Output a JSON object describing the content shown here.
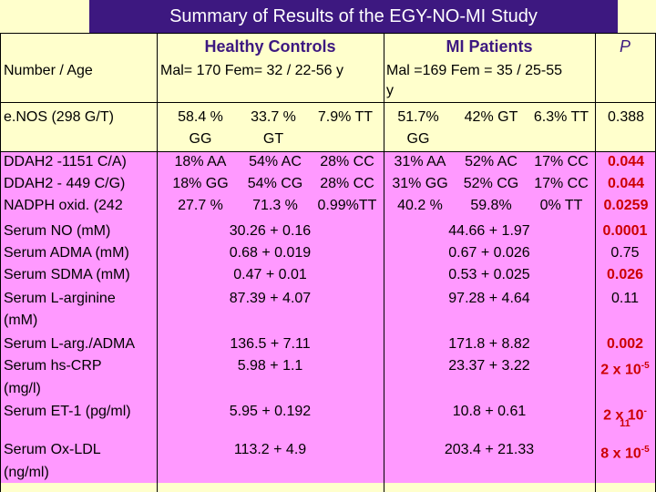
{
  "title": "Summary of Results of the EGY-NO-MI Study",
  "headers": {
    "healthy": "Healthy Controls",
    "mi": "MI Patients",
    "p": "P"
  },
  "number_age": {
    "label": "Number / Age",
    "healthy": "Mal= 170  Fem= 32  / 22-56 y",
    "mi": "Mal =169  Fem = 35  / 25-55",
    "mi_cont": "y"
  },
  "enos": {
    "label": "e.NOS (298 G/T)",
    "h1": "58.4 %",
    "h1b": "GG",
    "h2": "33.7 %",
    "h2b": "GT",
    "h3": "7.9% TT",
    "m1": "51.7%",
    "m1b": "GG",
    "m2": "42% GT",
    "m3": "6.3% TT",
    "p": "0.388"
  },
  "genotype_rows": [
    {
      "label": "DDAH2 -1151 C/A)",
      "h1": "18% AA",
      "h2": "54% AC",
      "h3": "28% CC",
      "m1": "31% AA",
      "m2": "52% AC",
      "m3": "17% CC",
      "p": "0.044"
    },
    {
      "label": "DDAH2 - 449 C/G)",
      "h1": "18% GG",
      "h2": "54% CG",
      "h3": "28% CC",
      "m1": "31% GG",
      "m2": "52% CG",
      "m3": "17% CC",
      "p": "0.044"
    },
    {
      "label": "NADPH oxid. (242",
      "h1": "27.7 %",
      "h2": "71.3 %",
      "h3": "0.99%TT",
      "m1": "40.2 %",
      "m2": "59.8%",
      "m3": "0% TT",
      "p": "0.0259"
    }
  ],
  "serum_rows": [
    {
      "label": "Serum NO (mM)",
      "healthy": "30.26 + 0.16",
      "mi": "44.66 + 1.97",
      "p": "0.0001"
    },
    {
      "label": "Serum ADMA (mM)",
      "healthy": "0.68 + 0.019",
      "mi": "0.67 + 0.026",
      "p": "0.75"
    },
    {
      "label": "Serum SDMA (mM)",
      "healthy": "0.47 + 0.01",
      "mi": "0.53 + 0.025",
      "p": "0.026"
    },
    {
      "label": "Serum L-arginine",
      "label2": "(mM)",
      "healthy": "87.39 + 4.07",
      "mi": "97.28 + 4.64",
      "p": "0.11"
    },
    {
      "label": "Serum L-arg./ADMA",
      "healthy": "136.5 + 7.11",
      "mi": "171.8 + 8.82",
      "p": "0.002"
    },
    {
      "label": "Serum hs-CRP",
      "label2": "(mg/l)",
      "healthy": "5.98 + 1.1",
      "mi": "23.37 + 3.22",
      "p": "2 x 10",
      "p_exp": "-5"
    },
    {
      "label": "Serum ET-1 (pg/ml)",
      "healthy": "5.95 + 0.192",
      "mi": "10.8 + 0.61",
      "p": "2 x 10",
      "p_exp": "-",
      "p_line2": "11"
    },
    {
      "label": "Serum Ox-LDL",
      "label2": "(ng/ml)",
      "healthy": "113.2 + 4.9",
      "mi": "203.4 + 21.33",
      "p": "8 x 10",
      "p_exp": "-5"
    }
  ],
  "colors": {
    "title_bg": "#3d1880",
    "pink": "#ff99ff",
    "yellow": "#ffffcc",
    "red": "#cc0000"
  }
}
